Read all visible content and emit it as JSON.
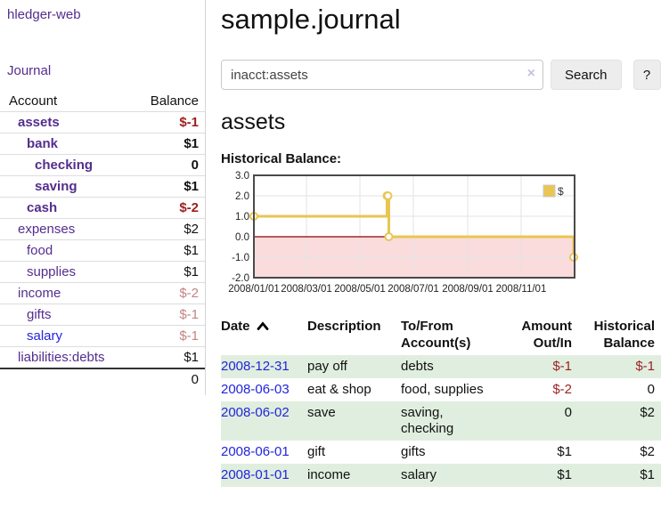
{
  "brand": "hledger-web",
  "sidebar": {
    "journal_link": "Journal",
    "columns": {
      "account": "Account",
      "balance": "Balance"
    },
    "accounts": [
      {
        "name": "assets",
        "indent": 1,
        "bold": true,
        "link_color": "purple",
        "balance": "$-1",
        "balance_style": "neg-strong"
      },
      {
        "name": "bank",
        "indent": 2,
        "bold": true,
        "link_color": "purple",
        "balance": "$1",
        "balance_style": "pos-strong"
      },
      {
        "name": "checking",
        "indent": 3,
        "bold": true,
        "link_color": "purple",
        "balance": "0",
        "balance_style": "pos-strong"
      },
      {
        "name": "saving",
        "indent": 3,
        "bold": true,
        "link_color": "purple",
        "balance": "$1",
        "balance_style": "pos-strong"
      },
      {
        "name": "cash",
        "indent": 2,
        "bold": true,
        "link_color": "purple",
        "balance": "$-2",
        "balance_style": "neg-strong"
      },
      {
        "name": "expenses",
        "indent": 1,
        "bold": false,
        "link_color": "purple",
        "balance": "$2",
        "balance_style": "pos"
      },
      {
        "name": "food",
        "indent": 2,
        "bold": false,
        "link_color": "purple",
        "balance": "$1",
        "balance_style": "pos"
      },
      {
        "name": "supplies",
        "indent": 2,
        "bold": false,
        "link_color": "purple",
        "balance": "$1",
        "balance_style": "pos"
      },
      {
        "name": "income",
        "indent": 1,
        "bold": false,
        "link_color": "purple",
        "balance": "$-2",
        "balance_style": "neg-soft"
      },
      {
        "name": "gifts",
        "indent": 2,
        "bold": false,
        "link_color": "purple",
        "balance": "$-1",
        "balance_style": "neg-soft"
      },
      {
        "name": "salary",
        "indent": 2,
        "bold": false,
        "link_color": "blue",
        "balance": "$-1",
        "balance_style": "neg-soft"
      },
      {
        "name": "liabilities:debts",
        "indent": 1,
        "bold": false,
        "link_color": "purple",
        "balance": "$1",
        "balance_style": "pos"
      }
    ],
    "total": "0"
  },
  "main": {
    "title": "sample.journal",
    "search": {
      "value": "inacct:assets",
      "clear_icon": "×",
      "search_button": "Search",
      "help_button": "?"
    },
    "account_heading": "assets",
    "chart_heading": "Historical Balance:"
  },
  "chart_data": {
    "type": "line",
    "title": "Historical Balance",
    "step": true,
    "x_domain": [
      "2008/01/01",
      "2009/01/01"
    ],
    "x_domain_days": 366,
    "ylim": [
      -2,
      3
    ],
    "y_ticks": [
      "3.0",
      "2.0",
      "1.0",
      "0.0",
      "-1.0",
      "-2.0"
    ],
    "x_ticks": [
      {
        "label": "2008/01/01",
        "day": 0
      },
      {
        "label": "2008/03/01",
        "day": 60
      },
      {
        "label": "2008/05/01",
        "day": 121
      },
      {
        "label": "2008/07/01",
        "day": 182
      },
      {
        "label": "2008/09/01",
        "day": 244
      },
      {
        "label": "2008/11/01",
        "day": 305
      }
    ],
    "series": [
      {
        "name": "$",
        "color": "#e9c552",
        "points": [
          {
            "date": "2008-01-01",
            "day": 0,
            "value": 1
          },
          {
            "date": "2008-06-01",
            "day": 152,
            "value": 2
          },
          {
            "date": "2008-06-02",
            "day": 153,
            "value": 2
          },
          {
            "date": "2008-06-03",
            "day": 154,
            "value": 0
          },
          {
            "date": "2008-12-31",
            "day": 365,
            "value": -1
          }
        ]
      }
    ],
    "legend": {
      "position": "top-right",
      "entries": [
        {
          "label": "$",
          "color": "#e9c552"
        }
      ]
    },
    "grid": true,
    "negative_region_fill": "#fadcdc",
    "zero_line_color": "#8b0000",
    "plot_border_color": "#4a4a4a",
    "grid_color": "#e3e3e3"
  },
  "register": {
    "columns": [
      {
        "line1": "Date",
        "line2": "",
        "align": "left",
        "sorted": "ascending"
      },
      {
        "line1": "Description",
        "line2": "",
        "align": "left"
      },
      {
        "line1": "To/From",
        "line2": "Account(s)",
        "align": "left"
      },
      {
        "line1": "Amount",
        "line2": "Out/In",
        "align": "right"
      },
      {
        "line1": "Historical",
        "line2": "Balance",
        "align": "right"
      }
    ],
    "rows": [
      {
        "date": "2008-12-31",
        "description": "pay off",
        "accounts": "debts",
        "amount": "$-1",
        "amount_negative": true,
        "balance": "$-1",
        "balance_negative": true,
        "shaded": true
      },
      {
        "date": "2008-06-03",
        "description": "eat & shop",
        "accounts": "food, supplies",
        "amount": "$-2",
        "amount_negative": true,
        "balance": "0",
        "balance_negative": false,
        "shaded": false
      },
      {
        "date": "2008-06-02",
        "description": "save",
        "accounts": "saving, checking",
        "amount": "0",
        "amount_negative": false,
        "balance": "$2",
        "balance_negative": false,
        "shaded": true
      },
      {
        "date": "2008-06-01",
        "description": "gift",
        "accounts": "gifts",
        "amount": "$1",
        "amount_negative": false,
        "balance": "$2",
        "balance_negative": false,
        "shaded": false
      },
      {
        "date": "2008-01-01",
        "description": "income",
        "accounts": "salary",
        "amount": "$1",
        "amount_negative": false,
        "balance": "$1",
        "balance_negative": false,
        "shaded": true
      }
    ]
  },
  "colors": {
    "link_purple": "#542d8e",
    "link_blue": "#2225dd",
    "negative_strong": "#9c1f1f",
    "negative_soft": "#c28484",
    "row_shade_green": "#e0eedf",
    "chart_line_gold": "#e9c552",
    "chart_negative_pink": "#fadcdc",
    "chart_zero_line": "#8b0000"
  }
}
